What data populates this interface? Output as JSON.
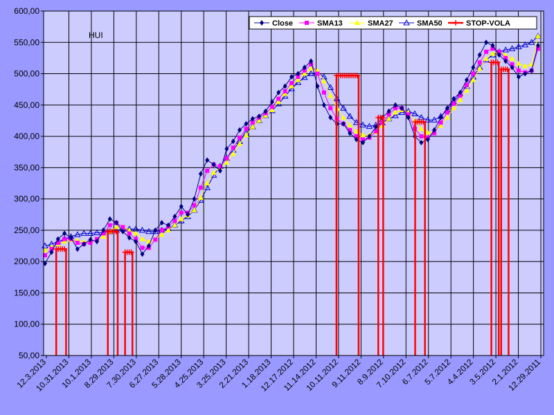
{
  "chart_data": {
    "type": "line",
    "title": "",
    "inner_label": "HUI",
    "xlabel": "",
    "ylabel": "",
    "ylim": [
      50,
      600
    ],
    "y_ticks": [
      "50,00",
      "100,00",
      "150,00",
      "200,00",
      "250,00",
      "300,00",
      "350,00",
      "400,00",
      "450,00",
      "500,00",
      "550,00",
      "600,00"
    ],
    "x_ticks": [
      "12.3.2013",
      "10.31.2013",
      "10.1.2013",
      "8.29.2013",
      "7.30.2013",
      "6.27.2013",
      "5.28.2013",
      "4.25.2013",
      "3.25.2013",
      "2.21.2013",
      "1.18.2013",
      "12.17.2012",
      "11.14.2012",
      "10.11.2012",
      "9.11.2012",
      "8.9.2012",
      "7.10.2012",
      "6.7.2012",
      "5.7.2012",
      "4.4.2012",
      "3.5.2012",
      "2.1.2012",
      "12.29.2011"
    ],
    "x_order": "newest date at left, oldest at right",
    "grid": true,
    "legend_position": "top-right",
    "series": [
      {
        "name": "Close",
        "color": "#000080",
        "marker": "diamond",
        "values": [
          197,
          215,
          236,
          245,
          238,
          220,
          228,
          235,
          232,
          250,
          268,
          262,
          248,
          238,
          232,
          212,
          225,
          250,
          262,
          258,
          272,
          288,
          275,
          300,
          340,
          362,
          355,
          345,
          380,
          392,
          410,
          420,
          428,
          432,
          440,
          455,
          470,
          480,
          495,
          500,
          510,
          520,
          480,
          450,
          430,
          420,
          420,
          405,
          395,
          390,
          400,
          415,
          430,
          440,
          450,
          445,
          430,
          400,
          390,
          395,
          410,
          430,
          445,
          460,
          470,
          490,
          510,
          530,
          550,
          545,
          530,
          520,
          510,
          495,
          500,
          505,
          545
        ]
      },
      {
        "name": "SMA13",
        "color": "#ff00ff",
        "marker": "square",
        "values": [
          210,
          220,
          230,
          236,
          236,
          230,
          228,
          230,
          236,
          245,
          258,
          262,
          255,
          245,
          236,
          222,
          222,
          235,
          250,
          256,
          265,
          278,
          278,
          290,
          318,
          345,
          355,
          352,
          365,
          382,
          398,
          412,
          422,
          430,
          437,
          447,
          460,
          472,
          485,
          495,
          505,
          515,
          500,
          470,
          445,
          428,
          420,
          410,
          400,
          395,
          398,
          408,
          422,
          435,
          445,
          445,
          435,
          412,
          400,
          398,
          405,
          422,
          438,
          452,
          465,
          482,
          500,
          518,
          535,
          540,
          535,
          525,
          515,
          505,
          502,
          505,
          540
        ]
      },
      {
        "name": "SMA27",
        "color": "#ffff00",
        "marker": "triangle",
        "values": [
          218,
          223,
          228,
          232,
          235,
          234,
          232,
          232,
          235,
          240,
          248,
          255,
          255,
          250,
          245,
          236,
          232,
          236,
          243,
          250,
          258,
          268,
          274,
          282,
          302,
          325,
          342,
          350,
          358,
          372,
          388,
          402,
          415,
          425,
          433,
          442,
          455,
          468,
          480,
          490,
          500,
          508,
          505,
          488,
          465,
          445,
          430,
          418,
          408,
          402,
          402,
          407,
          417,
          428,
          438,
          442,
          438,
          425,
          412,
          406,
          407,
          417,
          430,
          445,
          458,
          473,
          490,
          508,
          524,
          532,
          535,
          530,
          524,
          516,
          512,
          515,
          560
        ]
      },
      {
        "name": "SMA50",
        "color": "#0000cc",
        "marker": "triangle-open",
        "values": [
          225,
          228,
          232,
          236,
          240,
          243,
          245,
          245,
          246,
          246,
          248,
          250,
          252,
          252,
          252,
          250,
          248,
          248,
          250,
          253,
          258,
          265,
          272,
          282,
          298,
          318,
          338,
          352,
          365,
          378,
          392,
          405,
          415,
          425,
          433,
          441,
          452,
          464,
          476,
          486,
          494,
          500,
          502,
          495,
          478,
          460,
          445,
          432,
          422,
          418,
          416,
          418,
          422,
          428,
          433,
          438,
          440,
          436,
          430,
          426,
          426,
          432,
          442,
          455,
          468,
          480,
          495,
          510,
          522,
          530,
          535,
          538,
          540,
          543,
          546,
          550,
          560
        ]
      },
      {
        "name": "STOP-VOLA",
        "color": "#ff0000",
        "marker": "plus",
        "segments": [
          {
            "x_start": 4,
            "x_end": 8,
            "level": 220
          },
          {
            "x_start": 25,
            "x_end": 29,
            "level": 248
          },
          {
            "x_start": 32,
            "x_end": 35,
            "level": 215
          },
          {
            "x_start": 118,
            "x_end": 127,
            "level": 497
          },
          {
            "x_start": 135,
            "x_end": 137,
            "level": 430
          },
          {
            "x_start": 150,
            "x_end": 154,
            "level": 423
          },
          {
            "x_start": 181,
            "x_end": 184,
            "level": 518
          },
          {
            "x_start": 185,
            "x_end": 188,
            "level": 507
          }
        ]
      }
    ]
  }
}
